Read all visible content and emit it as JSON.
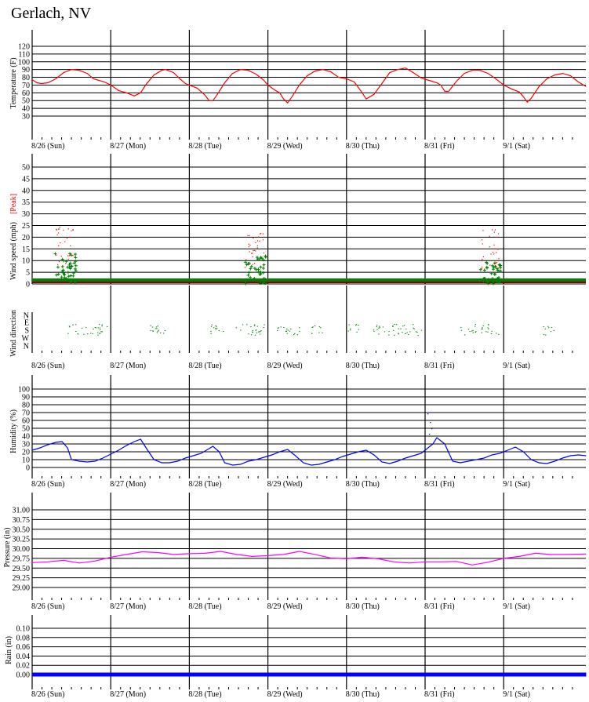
{
  "page": {
    "title": "Gerlach, NV"
  },
  "colors": {
    "temperature": "#ff0000",
    "wind": "#008000",
    "peak": "#ff0000",
    "humidity": "#0000ff",
    "pressure": "#ff00ff",
    "rain": "#0000ff"
  },
  "day_labels": [
    "8/26 (Sun)",
    "8/27 (Mon)",
    "8/28 (Tue)",
    "8/29 (Wed)",
    "8/30 (Thu)",
    "8/31 (Fri)",
    "9/1 (Sat)"
  ],
  "chart_data": [
    {
      "id": "temperature",
      "type": "line",
      "ylabel": "Temperature (F)",
      "ylim": [
        20,
        130
      ],
      "yticks": [
        "30",
        "40",
        "50",
        "60",
        "70",
        "80",
        "90",
        "100",
        "110",
        "120"
      ],
      "x_days": [
        0,
        0.06,
        0.12,
        0.2,
        0.3,
        0.4,
        0.5,
        0.6,
        0.7,
        0.78,
        0.85,
        0.92,
        1.0,
        1.1,
        1.2,
        1.3,
        1.38,
        1.45,
        1.55,
        1.65,
        1.7,
        1.8,
        1.88,
        1.95,
        2.0,
        2.1,
        2.2,
        2.25,
        2.3,
        2.35,
        2.45,
        2.55,
        2.65,
        2.75,
        2.85,
        2.95,
        3.0,
        3.08,
        3.15,
        3.2,
        3.25,
        3.3,
        3.4,
        3.5,
        3.6,
        3.7,
        3.8,
        3.9,
        4.0,
        4.1,
        4.15,
        4.2,
        4.25,
        4.35,
        4.45,
        4.55,
        4.65,
        4.75,
        4.85,
        4.95,
        5.05,
        5.15,
        5.2,
        5.25,
        5.3,
        5.4,
        5.5,
        5.6,
        5.7,
        5.8,
        5.9,
        6.0,
        6.1,
        6.2,
        6.25,
        6.3,
        6.35,
        6.45,
        6.55,
        6.65,
        6.75,
        6.85,
        6.95,
        7.05
      ],
      "values": [
        77,
        73,
        72,
        73,
        78,
        86,
        90,
        89,
        85,
        78,
        76,
        74,
        70,
        63,
        60,
        56,
        60,
        71,
        83,
        89,
        90,
        86,
        78,
        72,
        70,
        66,
        57,
        50,
        50,
        57,
        73,
        85,
        90,
        89,
        84,
        76,
        70,
        64,
        60,
        52,
        47,
        54,
        70,
        82,
        88,
        90,
        87,
        80,
        78,
        74,
        67,
        60,
        52,
        58,
        72,
        86,
        90,
        92,
        86,
        79,
        76,
        73,
        70,
        62,
        62,
        75,
        85,
        89,
        89,
        85,
        78,
        70,
        65,
        61,
        55,
        48,
        53,
        68,
        78,
        83,
        85,
        82,
        74,
        68
      ]
    },
    {
      "id": "wind",
      "type": "scatter",
      "ylabel": "Wind speed (mph)",
      "peak_label": "[Peak]",
      "ylim": [
        0,
        55
      ],
      "yticks": [
        "0",
        "5",
        "10",
        "15",
        "20",
        "25",
        "30",
        "35",
        "40",
        "45",
        "50"
      ],
      "gust_clusters": [
        {
          "day": 0.35,
          "max": 14,
          "peak": 25
        },
        {
          "day": 2.75,
          "max": 12,
          "peak": 22
        },
        {
          "day": 5.75,
          "max": 10,
          "peak": 24
        }
      ]
    },
    {
      "id": "wind_direction",
      "type": "scatter",
      "ylabel": "Wind direction",
      "yticks": [
        "N",
        "E",
        "S",
        "W",
        "N"
      ],
      "segments": [
        [
          0.45,
          0.95
        ],
        [
          1.45,
          1.7
        ],
        [
          2.25,
          2.45
        ],
        [
          2.55,
          2.95
        ],
        [
          3.1,
          3.4
        ],
        [
          3.55,
          3.7
        ],
        [
          4.0,
          4.15
        ],
        [
          4.3,
          4.95
        ],
        [
          5.45,
          5.65
        ],
        [
          5.7,
          5.95
        ],
        [
          6.5,
          6.65
        ]
      ]
    },
    {
      "id": "humidity",
      "type": "line",
      "ylabel": "Humidity (%)",
      "ylim": [
        -10,
        110
      ],
      "yticks": [
        "0",
        "10",
        "20",
        "30",
        "40",
        "50",
        "60",
        "70",
        "80",
        "90",
        "100"
      ],
      "x_days": [
        0,
        0.1,
        0.2,
        0.3,
        0.38,
        0.45,
        0.5,
        0.6,
        0.7,
        0.8,
        0.9,
        1.0,
        1.1,
        1.2,
        1.3,
        1.38,
        1.45,
        1.55,
        1.65,
        1.75,
        1.85,
        1.95,
        2.05,
        2.15,
        2.25,
        2.3,
        2.38,
        2.45,
        2.55,
        2.65,
        2.75,
        2.85,
        2.95,
        3.05,
        3.15,
        3.25,
        3.35,
        3.45,
        3.55,
        3.65,
        3.75,
        3.85,
        3.95,
        4.05,
        4.15,
        4.25,
        4.35,
        4.45,
        4.55,
        4.65,
        4.75,
        4.85,
        4.95,
        5.0,
        5.1,
        5.15,
        5.25,
        5.35,
        5.45,
        5.55,
        5.65,
        5.75,
        5.85,
        5.95,
        6.05,
        6.15,
        6.25,
        6.35,
        6.45,
        6.55,
        6.65,
        6.75,
        6.85,
        6.95,
        7.05
      ],
      "values": [
        22,
        25,
        29,
        32,
        33,
        25,
        10,
        8,
        7,
        8,
        12,
        17,
        22,
        28,
        33,
        36,
        25,
        10,
        6,
        6,
        8,
        12,
        15,
        18,
        24,
        27,
        20,
        6,
        3,
        4,
        8,
        10,
        13,
        16,
        20,
        23,
        15,
        6,
        3,
        4,
        7,
        10,
        14,
        17,
        20,
        22,
        16,
        7,
        5,
        8,
        12,
        15,
        18,
        22,
        30,
        38,
        30,
        8,
        6,
        8,
        10,
        12,
        16,
        18,
        22,
        26,
        20,
        10,
        6,
        5,
        8,
        12,
        15,
        16,
        15
      ]
    },
    {
      "id": "pressure",
      "type": "line",
      "ylabel": "Pressure (in)",
      "ylim": [
        28.875,
        31.25
      ],
      "yticks": [
        "29.00",
        "29.25",
        "29.50",
        "29.75",
        "30.00",
        "30.25",
        "30.50",
        "30.75",
        "31.00"
      ],
      "x_days": [
        0,
        0.2,
        0.4,
        0.6,
        0.8,
        1.0,
        1.2,
        1.4,
        1.6,
        1.8,
        2.0,
        2.2,
        2.4,
        2.6,
        2.8,
        3.0,
        3.2,
        3.4,
        3.6,
        3.8,
        4.0,
        4.2,
        4.4,
        4.6,
        4.8,
        5.0,
        5.2,
        5.4,
        5.6,
        5.8,
        6.0,
        6.2,
        6.4,
        6.6,
        6.8,
        7.05
      ],
      "values": [
        29.64,
        29.66,
        29.7,
        29.63,
        29.68,
        29.78,
        29.85,
        29.92,
        29.9,
        29.85,
        29.87,
        29.88,
        29.93,
        29.85,
        29.8,
        29.82,
        29.85,
        29.93,
        29.85,
        29.76,
        29.74,
        29.78,
        29.74,
        29.66,
        29.63,
        29.66,
        29.66,
        29.67,
        29.58,
        29.65,
        29.75,
        29.8,
        29.88,
        29.85,
        29.85,
        29.86
      ]
    },
    {
      "id": "rain",
      "type": "line",
      "ylabel": "Rain (in)",
      "ylim": [
        -0.01,
        0.11
      ],
      "yticks": [
        "0.00",
        "0.02",
        "0.04",
        "0.06",
        "0.08",
        "0.10"
      ],
      "x_days": [
        0,
        7.05
      ],
      "values": [
        0,
        0
      ]
    }
  ]
}
